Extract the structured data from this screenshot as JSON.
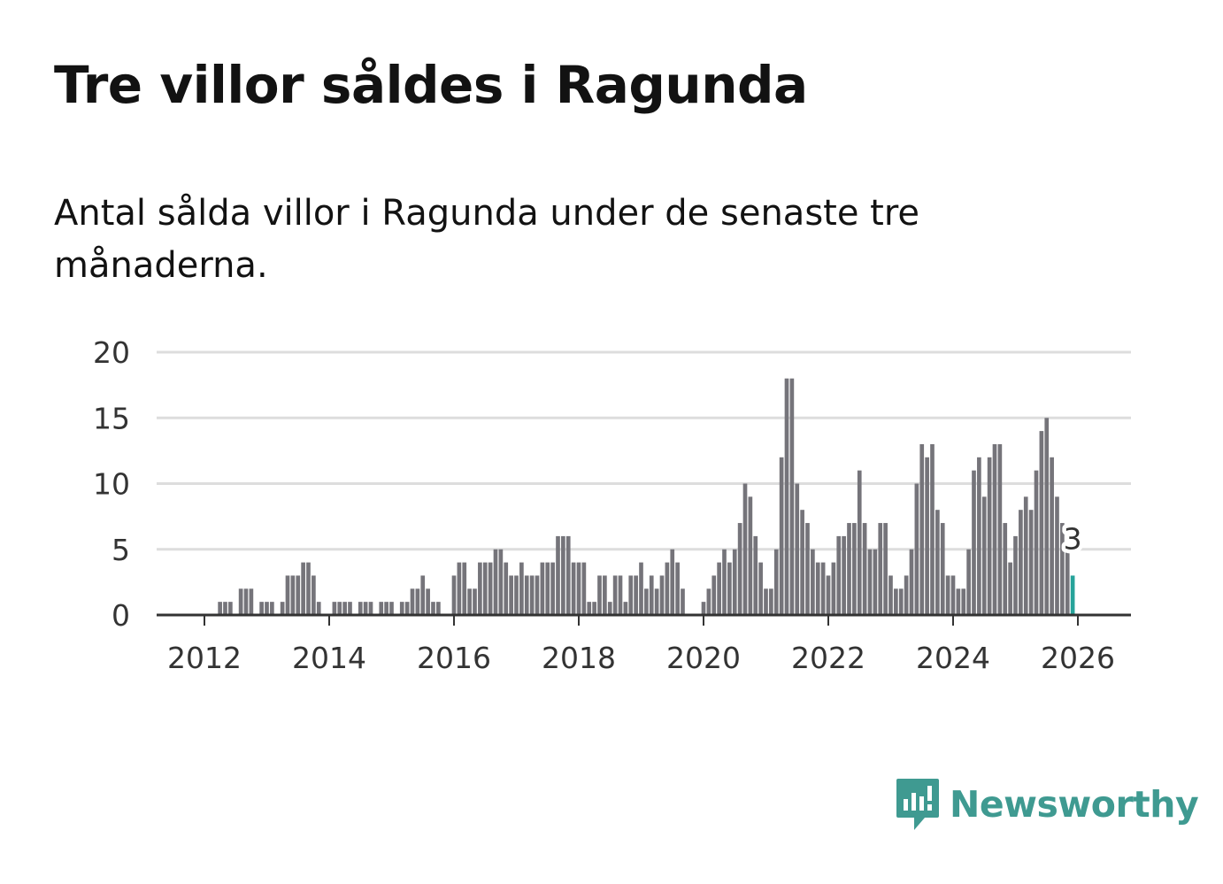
{
  "title": "Tre villor såldes i Ragunda",
  "subtitle": "Antal sålda villor i Ragunda under de senaste tre månaderna.",
  "brand": {
    "name": "Newsworthy",
    "icon": "newsworthy-logo-icon",
    "color": "#3f9a91"
  },
  "colors": {
    "bar": "#75747a",
    "highlight": "#26a39a",
    "grid": "#dddddd",
    "axis": "#333333"
  },
  "chart_data": {
    "type": "bar",
    "title": "Tre villor såldes i Ragunda",
    "xlabel": "",
    "ylabel": "",
    "ylim": [
      0,
      20
    ],
    "yticks": [
      0,
      5,
      10,
      15,
      20
    ],
    "xticks": [
      "2012",
      "2014",
      "2016",
      "2018",
      "2020",
      "2022",
      "2024",
      "2026"
    ],
    "start": "2011-03",
    "frequency": "monthly",
    "highlight_label": "3",
    "values": [
      0,
      0,
      0,
      0,
      0,
      0,
      0,
      0,
      0,
      0,
      0,
      0,
      0,
      1,
      1,
      1,
      0,
      2,
      2,
      2,
      0,
      1,
      1,
      1,
      0,
      1,
      3,
      3,
      3,
      4,
      4,
      3,
      1,
      0,
      0,
      1,
      1,
      1,
      1,
      0,
      1,
      1,
      1,
      0,
      1,
      1,
      1,
      0,
      1,
      1,
      2,
      2,
      3,
      2,
      1,
      1,
      0,
      0,
      3,
      4,
      4,
      2,
      2,
      4,
      4,
      4,
      5,
      5,
      4,
      3,
      3,
      4,
      3,
      3,
      3,
      4,
      4,
      4,
      6,
      6,
      6,
      4,
      4,
      4,
      1,
      1,
      3,
      3,
      1,
      3,
      3,
      1,
      3,
      3,
      4,
      2,
      3,
      2,
      3,
      4,
      5,
      4,
      2,
      0,
      0,
      0,
      1,
      2,
      3,
      4,
      5,
      4,
      5,
      7,
      10,
      9,
      6,
      4,
      2,
      2,
      5,
      12,
      18,
      18,
      10,
      8,
      7,
      5,
      4,
      4,
      3,
      4,
      6,
      6,
      7,
      7,
      11,
      7,
      5,
      5,
      7,
      7,
      3,
      2,
      2,
      3,
      5,
      10,
      13,
      12,
      13,
      8,
      7,
      3,
      3,
      2,
      2,
      5,
      11,
      12,
      9,
      12,
      13,
      13,
      7,
      4,
      6,
      8,
      9,
      8,
      11,
      14,
      15,
      12,
      9,
      7,
      5,
      3
    ]
  }
}
